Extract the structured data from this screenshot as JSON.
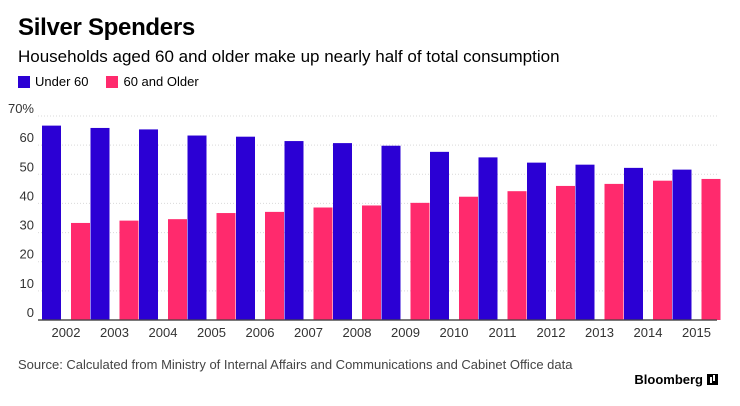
{
  "chart_data": {
    "type": "bar",
    "title": "Silver Spenders",
    "subtitle": "Households aged 60 and older make up nearly half of total consumption",
    "categories": [
      "2002",
      "2003",
      "2004",
      "2005",
      "2006",
      "2007",
      "2008",
      "2009",
      "2010",
      "2011",
      "2012",
      "2013",
      "2014",
      "2015"
    ],
    "series": [
      {
        "name": "Under 60",
        "color": "#2b00d4",
        "values": [
          66.7,
          65.9,
          65.4,
          63.3,
          62.9,
          61.4,
          60.7,
          59.8,
          57.7,
          55.8,
          54.0,
          53.3,
          52.2,
          51.6
        ]
      },
      {
        "name": "60 and Older",
        "color": "#ff2a6d",
        "values": [
          33.3,
          34.1,
          34.6,
          36.7,
          37.1,
          38.6,
          39.3,
          40.2,
          42.3,
          44.2,
          46.0,
          46.7,
          47.8,
          48.4
        ]
      }
    ],
    "y_ticks": [
      "0",
      "10",
      "20",
      "30",
      "40",
      "50",
      "60",
      "70%"
    ],
    "ylim": [
      0,
      70
    ],
    "grid": true,
    "legend_position": "top-left",
    "source": "Source: Calculated from Ministry of Internal Affairs and Communications and Cabinet Office data",
    "brand": "Bloomberg"
  }
}
